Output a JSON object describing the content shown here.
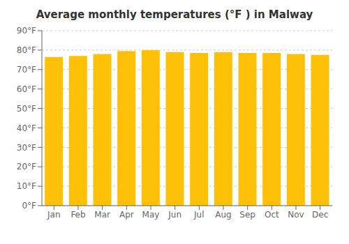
{
  "chart_data": {
    "type": "bar",
    "title": "Average monthly temperatures (°F ) in Malway",
    "categories": [
      "Jan",
      "Feb",
      "Mar",
      "Apr",
      "May",
      "Jun",
      "Jul",
      "Aug",
      "Sep",
      "Oct",
      "Nov",
      "Dec"
    ],
    "values": [
      76.5,
      77.0,
      78.0,
      79.5,
      80.0,
      79.0,
      78.5,
      79.0,
      78.5,
      78.5,
      78.0,
      77.5
    ],
    "color": "#FFC107",
    "ylim": [
      0,
      90
    ],
    "yticks": [
      {
        "value": 0,
        "label": "0°F"
      },
      {
        "value": 10,
        "label": "10°F"
      },
      {
        "value": 20,
        "label": "20°F"
      },
      {
        "value": 30,
        "label": "30°F"
      },
      {
        "value": 40,
        "label": "40°F"
      },
      {
        "value": 50,
        "label": "50°F"
      },
      {
        "value": 60,
        "label": "60°F"
      },
      {
        "value": 70,
        "label": "70°F"
      },
      {
        "value": 80,
        "label": "80°F"
      },
      {
        "value": 90,
        "label": "90°F"
      }
    ],
    "grid": true
  }
}
